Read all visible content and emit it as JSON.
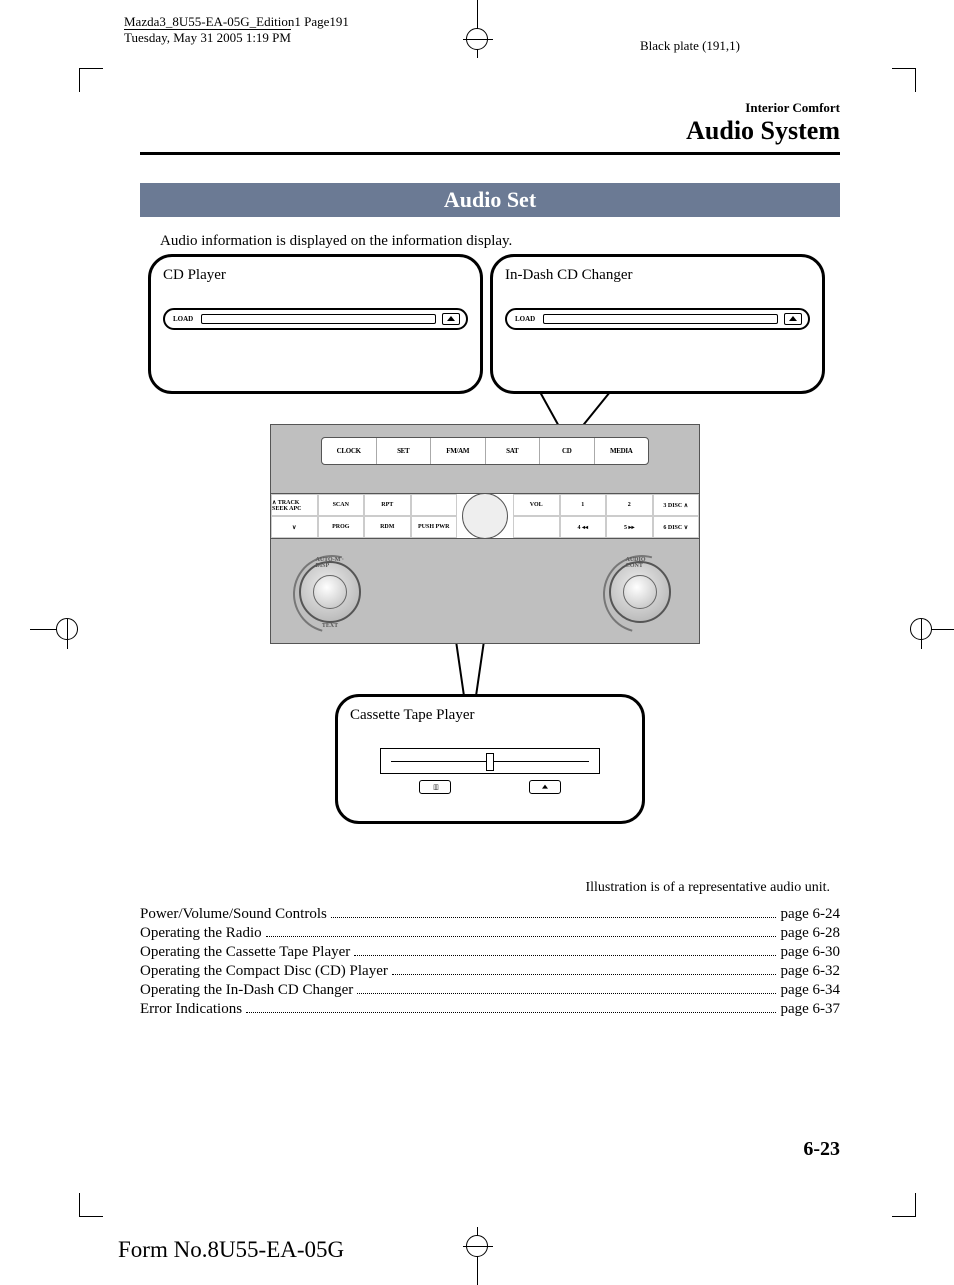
{
  "meta": {
    "doc_line1": "Mazda3_8U55-EA-05G_Edition1 Page191",
    "doc_line2": "Tuesday, May 31 2005 1:19 PM",
    "plate": "Black plate (191,1)"
  },
  "chapter": {
    "small": "Interior Comfort",
    "big": "Audio System"
  },
  "section_title": "Audio Set",
  "intro": "Audio information is displayed on the information display.",
  "callouts": {
    "cd": "CD Player",
    "changer": "In-Dash CD Changer",
    "cassette": "Cassette Tape Player",
    "load": "LOAD"
  },
  "radio": {
    "top": [
      "CLOCK",
      "SET",
      "FM/AM",
      "SAT",
      "CD",
      "MEDIA"
    ],
    "left_grid": [
      "∧ TRACK SEEK APC",
      "SCAN",
      "RPT",
      "",
      "∨",
      "PROG",
      "RDM",
      "PUSH PWR"
    ],
    "right_grid": [
      "1",
      "2",
      "3  DISC ∧",
      "VOL",
      "4 ◂◂",
      "5 ▸▸",
      "6  DISC ∨",
      ""
    ],
    "knob_left_top": "AUTO-M · DISP",
    "knob_left_bottom": "TEXT",
    "knob_right_top": "AUDIO CONT"
  },
  "note": "Illustration is of a representative audio unit.",
  "toc": [
    {
      "label": "Power/Volume/Sound Controls",
      "page": "page 6-24"
    },
    {
      "label": "Operating the Radio",
      "page": "page 6-28"
    },
    {
      "label": "Operating the Cassette Tape Player",
      "page": "page 6-30"
    },
    {
      "label": "Operating the Compact Disc (CD) Player",
      "page": "page 6-32"
    },
    {
      "label": "Operating the In-Dash CD Changer",
      "page": "page 6-34"
    },
    {
      "label": "Error Indications",
      "page": "page 6-37"
    }
  ],
  "page_num": "6-23",
  "footer": "Form No.8U55-EA-05G",
  "colors": {
    "bar": "#6b7a94",
    "radio_bg": "#bfbfbf"
  }
}
